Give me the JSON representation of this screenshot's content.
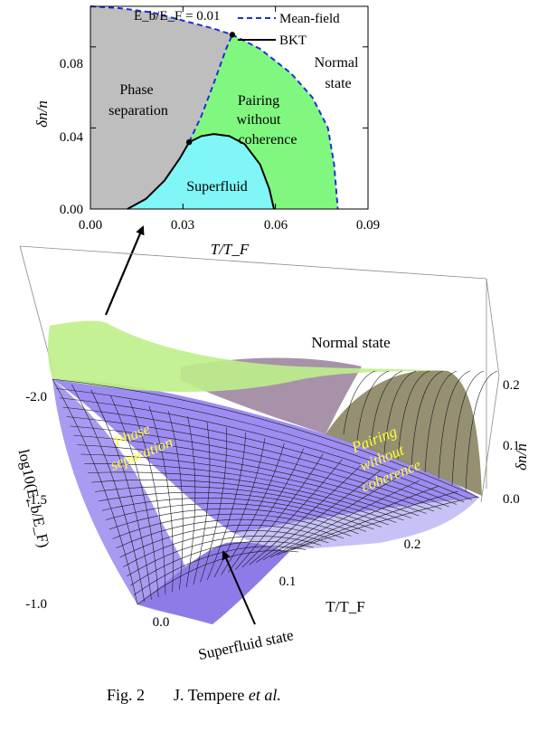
{
  "chart_data": [
    {
      "type": "area",
      "title": "",
      "annotation": "E_b/E_F = 0.01",
      "xlabel": "T/T_F",
      "ylabel": "δn/n",
      "xlim": [
        0.0,
        0.09
      ],
      "ylim": [
        0.0,
        0.1
      ],
      "x_ticks": [
        "0.00",
        "0.03",
        "0.06",
        "0.09"
      ],
      "y_ticks": [
        "0.00",
        "0.04",
        "0.08"
      ],
      "legend": {
        "placement": "top-right",
        "entries": [
          "Mean-field",
          "BKT"
        ]
      },
      "series": [
        {
          "name": "Mean-field",
          "style": "dashed",
          "color": "#1f2fd6",
          "points": [
            [
              0.0,
              0.1
            ],
            [
              0.01,
              0.099
            ],
            [
              0.02,
              0.097
            ],
            [
              0.03,
              0.093
            ],
            [
              0.04,
              0.089
            ],
            [
              0.046,
              0.086
            ],
            [
              0.055,
              0.079
            ],
            [
              0.065,
              0.067
            ],
            [
              0.072,
              0.055
            ],
            [
              0.077,
              0.04
            ],
            [
              0.079,
              0.022
            ],
            [
              0.0802,
              0.0
            ]
          ]
        },
        {
          "name": "BKT",
          "style": "solid",
          "color": "#000000",
          "points": [
            [
              0.012,
              0.0
            ],
            [
              0.018,
              0.005
            ],
            [
              0.024,
              0.014
            ],
            [
              0.029,
              0.025
            ],
            [
              0.032,
              0.033
            ],
            [
              0.036,
              0.036
            ],
            [
              0.04,
              0.037
            ],
            [
              0.045,
              0.036
            ],
            [
              0.05,
              0.032
            ],
            [
              0.055,
              0.022
            ],
            [
              0.058,
              0.01
            ],
            [
              0.0595,
              0.0
            ]
          ]
        },
        {
          "name": "",
          "style": "dashed",
          "color": "#1f2fd6",
          "points": [
            [
              0.032,
              0.033
            ],
            [
              0.036,
              0.046
            ],
            [
              0.04,
              0.062
            ],
            [
              0.044,
              0.079
            ],
            [
              0.046,
              0.086
            ]
          ]
        }
      ],
      "points": [
        [
          0.032,
          0.033
        ],
        [
          0.046,
          0.086
        ]
      ],
      "regions": [
        {
          "label": [
            "Phase",
            "separation"
          ],
          "color": "#bebebe"
        },
        {
          "label": [
            "Pairing",
            "without",
            "coherence"
          ],
          "color": "#80f880"
        },
        {
          "label": [
            "Superfluid"
          ],
          "color": "#80f6f6"
        },
        {
          "label": [
            "Normal",
            "state"
          ],
          "color": "#ffffff"
        }
      ]
    },
    {
      "type": "area",
      "title": "",
      "xlabel": "T/T_F",
      "ylabel": "log10(E_b/E_F)",
      "zlabel": "δn/n",
      "x_ticks": [
        "0.0",
        "0.1",
        "0.2"
      ],
      "y_ticks": [
        "-2.0",
        "-1.5",
        "-1.0"
      ],
      "z_ticks": [
        "0.0",
        "0.1",
        "0.2"
      ],
      "xlim": [
        0.0,
        0.25
      ],
      "ylim": [
        -2.0,
        -1.0
      ],
      "zlim": [
        0.0,
        0.25
      ],
      "labels": {
        "normal": "Normal state",
        "phase": [
          "Phase",
          "separation"
        ],
        "pairing": [
          "Pairing",
          "without",
          "coherence"
        ],
        "superfluid": "Superfluid state"
      }
    }
  ],
  "caption": {
    "fig": "Fig. 2",
    "authors": "J. Tempere",
    "etal": "et al."
  }
}
